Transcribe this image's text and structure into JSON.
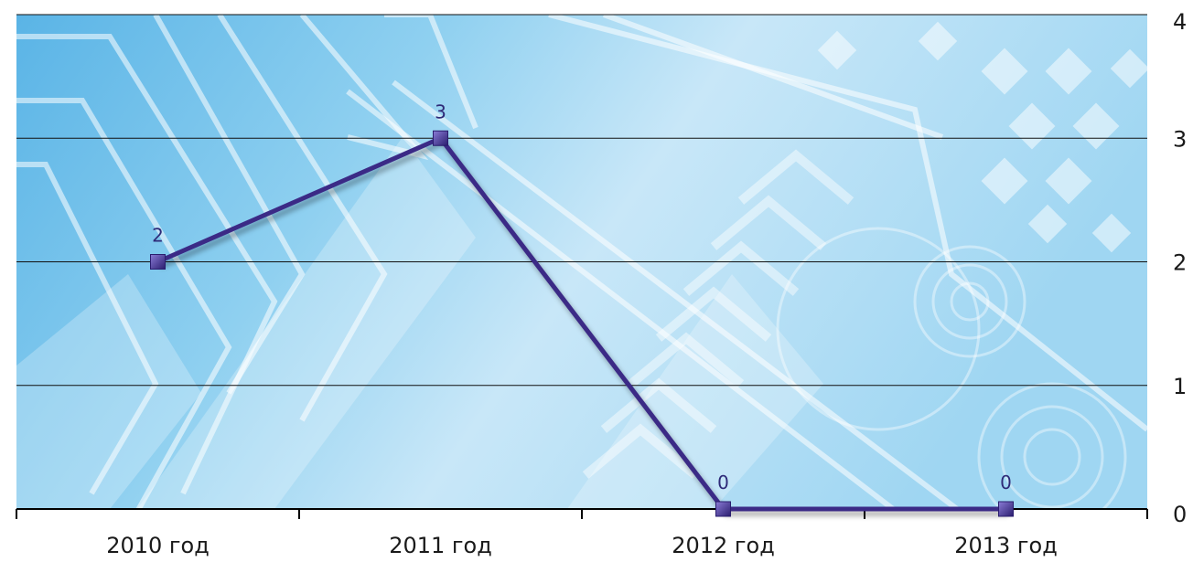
{
  "chart_data": {
    "type": "line",
    "categories": [
      "2010 год",
      "2011 год",
      "2012 год",
      "2013 год"
    ],
    "series": [
      {
        "values": [
          2,
          3,
          0,
          0
        ],
        "color": "#3b2a86"
      }
    ],
    "data_labels": [
      "2",
      "3",
      "0",
      "0"
    ],
    "y_ticks": [
      "0",
      "1",
      "2",
      "3",
      "4"
    ],
    "ylim": [
      0,
      4
    ],
    "grid": true,
    "y_axis_side": "right",
    "legend": "none",
    "colors": {
      "line": "#3b2a86",
      "marker": "#4b3a9c",
      "label": "#2e2a78",
      "gridline": "#111111",
      "background_light": "#d6ecf9",
      "background_mid": "#8fd0f0",
      "background_dark": "#5ab4e6"
    }
  }
}
